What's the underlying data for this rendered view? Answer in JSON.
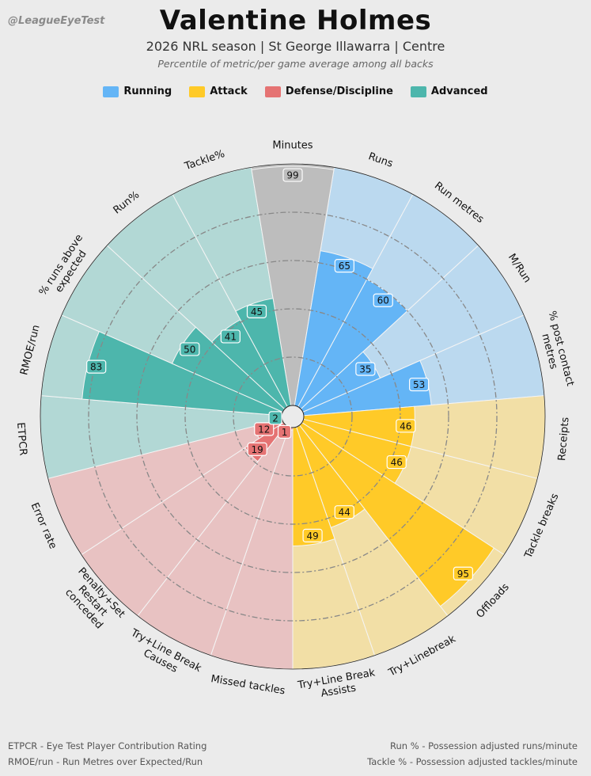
{
  "watermark": "@LeagueEyeTest",
  "header": {
    "title": "Valentine Holmes",
    "subtitle": "2026 NRL season | St George Illawarra | Centre",
    "note": "Percentile of metric/per game average among all backs"
  },
  "legend": [
    {
      "label": "Running",
      "color": "#64b5f6"
    },
    {
      "label": "Attack",
      "color": "#ffca28"
    },
    {
      "label": "Defense/Discipline",
      "color": "#e57373"
    },
    {
      "label": "Advanced",
      "color": "#4db6ac"
    }
  ],
  "chart_data": {
    "type": "polar-bar",
    "rlim": [
      0,
      100
    ],
    "grid": true,
    "categories": [
      "Minutes",
      "Runs",
      "Run metres",
      "M/Run",
      "% post contact\nmetres",
      "Receipts",
      "Tackle breaks",
      "Offloads",
      "Try+Linebreak",
      "Try+Line Break\nAssists",
      "Missed tackles",
      "Try+Line Break\nCauses",
      "Penalty+Set\nRestart\nconceded",
      "Error rate",
      "ETPCR",
      "RMOE/run",
      "% runs above\nexpected",
      "Run%",
      "Tackle%"
    ],
    "values": [
      99,
      65,
      60,
      35,
      53,
      46,
      46,
      95,
      44,
      49,
      1,
      1,
      19,
      12,
      2,
      83,
      50,
      41,
      45
    ],
    "value_labels": [
      "99",
      "65",
      "60",
      "35",
      "53",
      "46",
      "46",
      "95",
      "44",
      "49",
      "",
      "1",
      "19",
      "12",
      "2",
      "83",
      "50",
      "41",
      "45"
    ],
    "groups": [
      "Minutes",
      "Running",
      "Running",
      "Running",
      "Running",
      "Attack",
      "Attack",
      "Attack",
      "Attack",
      "Attack",
      "Defense/Discipline",
      "Defense/Discipline",
      "Defense/Discipline",
      "Defense/Discipline",
      "Advanced",
      "Advanced",
      "Advanced",
      "Advanced",
      "Advanced"
    ],
    "colors": {
      "Minutes": {
        "bar": "#bdbdbd",
        "bg": "#bdbdbd"
      },
      "Running": {
        "bar": "#64b5f6",
        "bg": "#bbd9ef"
      },
      "Attack": {
        "bar": "#ffca28",
        "bg": "#f2dfa6"
      },
      "Defense/Discipline": {
        "bar": "#e57373",
        "bg": "#e8c2c2"
      },
      "Advanced": {
        "bar": "#4db6ac",
        "bg": "#b2d8d5"
      }
    }
  },
  "footnotes": {
    "left": [
      "ETPCR - Eye Test Player Contribution Rating",
      "RMOE/run - Run Metres over Expected/Run"
    ],
    "right": [
      "Run % - Possession adjusted runs/minute",
      "Tackle % - Possession adjusted tackles/minute"
    ]
  }
}
